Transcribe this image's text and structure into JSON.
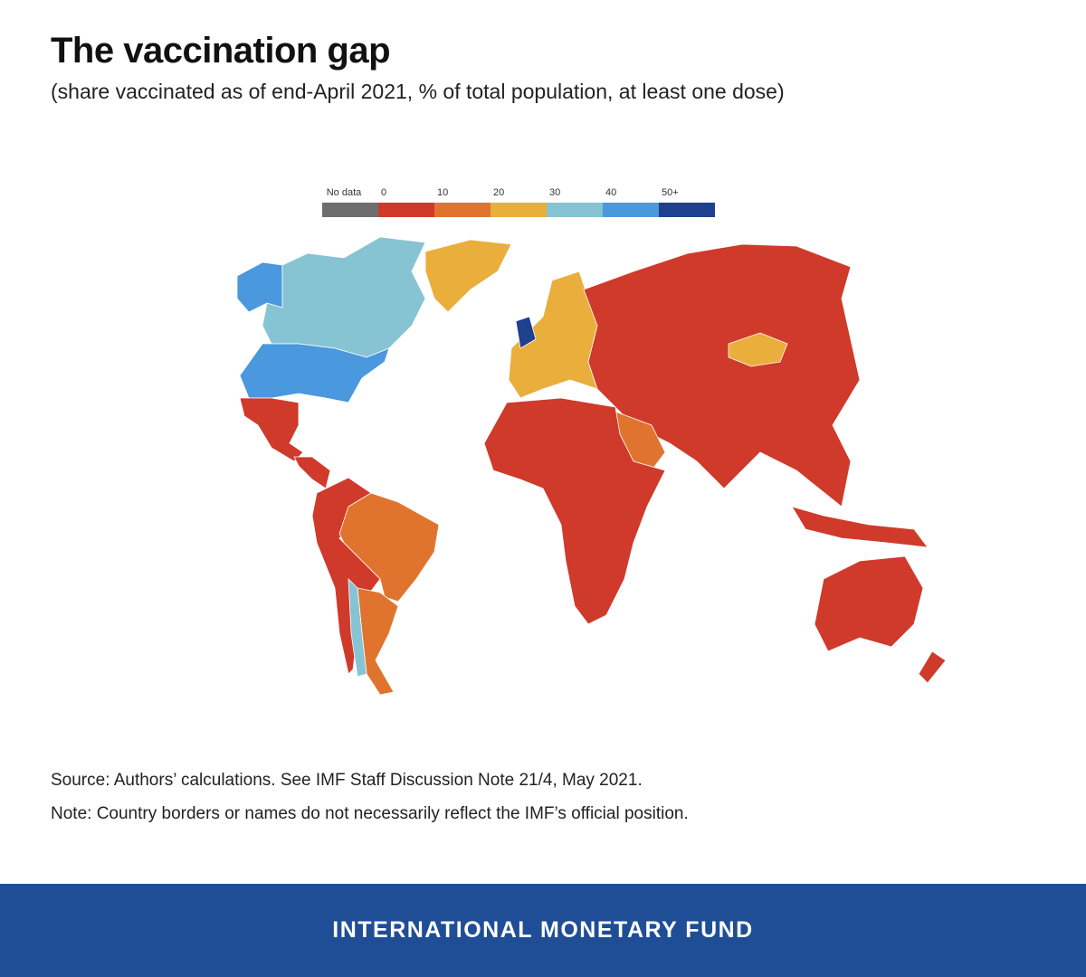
{
  "header": {
    "title": "The vaccination gap",
    "subtitle": "(share vaccinated as of end-April 2021, % of total population, at least one dose)"
  },
  "legend": {
    "no_data": "No data",
    "ticks": [
      "0",
      "10",
      "20",
      "30",
      "40",
      "50+"
    ],
    "colors": [
      "#6e6e6e",
      "#cf3a2b",
      "#e0742f",
      "#e9ae3b",
      "#86c4d3",
      "#4a98dd",
      "#1f3f8f"
    ]
  },
  "notes": {
    "source": "Source: Authors’ calculations. See IMF Staff Discussion Note 21/4, May 2021.",
    "note": "Note: Country borders or names do not necessarily reflect the IMF’s official position."
  },
  "footer": {
    "text": "INTERNATIONAL MONETARY FUND"
  }
}
